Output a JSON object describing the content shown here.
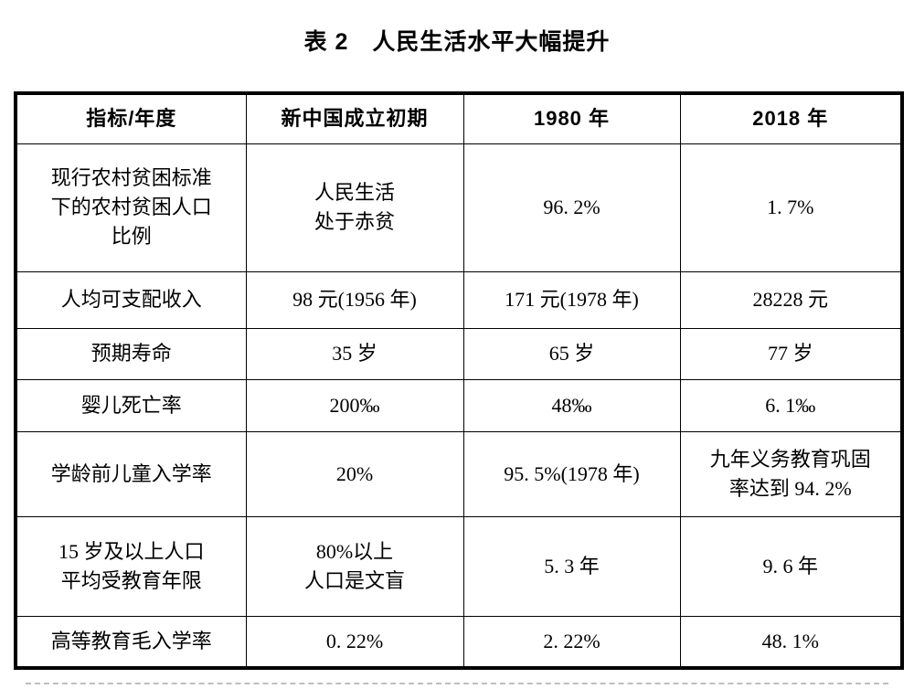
{
  "page": {
    "title_prefix": "表 2",
    "title_text": "人民生活水平大幅提升"
  },
  "table": {
    "headers": [
      "指标/年度",
      "新中国成立初期",
      "1980 年",
      "2018 年"
    ],
    "rows": [
      {
        "cells": [
          "现行农村贫困标准\n下的农村贫困人口\n比例",
          "人民生活\n处于赤贫",
          "96. 2%",
          "1. 7%"
        ]
      },
      {
        "cells": [
          "人均可支配收入",
          "98 元(1956 年)",
          "171 元(1978 年)",
          "28228 元"
        ]
      },
      {
        "cells": [
          "预期寿命",
          "35 岁",
          "65 岁",
          "77 岁"
        ]
      },
      {
        "cells": [
          "婴儿死亡率",
          "200‰",
          "48‰",
          "6. 1‰"
        ]
      },
      {
        "cells": [
          "学龄前儿童入学率",
          "20%",
          "95. 5%(1978 年)",
          "九年义务教育巩固\n率达到 94. 2%"
        ]
      },
      {
        "cells": [
          "15 岁及以上人口\n平均受教育年限",
          "80%以上\n人口是文盲",
          "5. 3 年",
          "9. 6 年"
        ]
      },
      {
        "cells": [
          "高等教育毛入学率",
          "0. 22%",
          "2. 22%",
          "48. 1%"
        ]
      }
    ]
  }
}
